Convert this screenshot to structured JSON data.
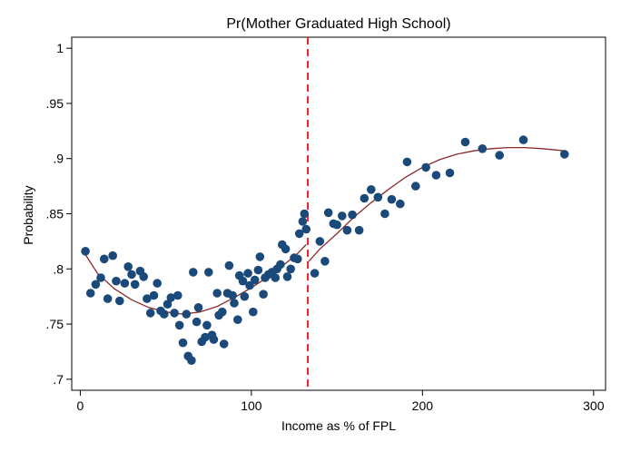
{
  "chart_data": {
    "type": "scatter",
    "title": "Pr(Mother Graduated High School)",
    "xlabel": "Income as % of FPL",
    "ylabel": "Probability",
    "xlim": [
      -5,
      307
    ],
    "ylim": [
      0.69,
      1.01
    ],
    "xticks": [
      0,
      100,
      200,
      300
    ],
    "xtick_labels": [
      "0",
      "100",
      "200",
      "300"
    ],
    "yticks": [
      0.7,
      0.75,
      0.8,
      0.85,
      0.9,
      0.95,
      1.0
    ],
    "ytick_labels": [
      ".7",
      ".75",
      ".8",
      ".85",
      ".9",
      ".95",
      "1"
    ],
    "grid": false,
    "legend": "none",
    "cutoff_x": 133,
    "colors": {
      "points": "#1b4a7a",
      "fit": "#8b2a2a",
      "cutoff": "#e8202a"
    },
    "points": [
      {
        "x": 3,
        "y": 0.816
      },
      {
        "x": 6,
        "y": 0.778
      },
      {
        "x": 9,
        "y": 0.786
      },
      {
        "x": 12,
        "y": 0.792
      },
      {
        "x": 14,
        "y": 0.809
      },
      {
        "x": 16,
        "y": 0.773
      },
      {
        "x": 19,
        "y": 0.812
      },
      {
        "x": 21,
        "y": 0.789
      },
      {
        "x": 23,
        "y": 0.771
      },
      {
        "x": 26,
        "y": 0.787
      },
      {
        "x": 28,
        "y": 0.802
      },
      {
        "x": 30,
        "y": 0.795
      },
      {
        "x": 32,
        "y": 0.786
      },
      {
        "x": 35,
        "y": 0.798
      },
      {
        "x": 37,
        "y": 0.793
      },
      {
        "x": 39,
        "y": 0.773
      },
      {
        "x": 41,
        "y": 0.76
      },
      {
        "x": 43,
        "y": 0.776
      },
      {
        "x": 45,
        "y": 0.787
      },
      {
        "x": 47,
        "y": 0.762
      },
      {
        "x": 49,
        "y": 0.759
      },
      {
        "x": 51,
        "y": 0.768
      },
      {
        "x": 53,
        "y": 0.774
      },
      {
        "x": 55,
        "y": 0.76
      },
      {
        "x": 57,
        "y": 0.776
      },
      {
        "x": 58,
        "y": 0.749
      },
      {
        "x": 60,
        "y": 0.733
      },
      {
        "x": 62,
        "y": 0.759
      },
      {
        "x": 63,
        "y": 0.721
      },
      {
        "x": 65,
        "y": 0.717
      },
      {
        "x": 66,
        "y": 0.797
      },
      {
        "x": 68,
        "y": 0.752
      },
      {
        "x": 69,
        "y": 0.765
      },
      {
        "x": 71,
        "y": 0.734
      },
      {
        "x": 73,
        "y": 0.738
      },
      {
        "x": 74,
        "y": 0.749
      },
      {
        "x": 75,
        "y": 0.797
      },
      {
        "x": 77,
        "y": 0.74
      },
      {
        "x": 78,
        "y": 0.736
      },
      {
        "x": 80,
        "y": 0.778
      },
      {
        "x": 81,
        "y": 0.758
      },
      {
        "x": 83,
        "y": 0.761
      },
      {
        "x": 84,
        "y": 0.732
      },
      {
        "x": 86,
        "y": 0.778
      },
      {
        "x": 87,
        "y": 0.803
      },
      {
        "x": 89,
        "y": 0.776
      },
      {
        "x": 90,
        "y": 0.769
      },
      {
        "x": 92,
        "y": 0.754
      },
      {
        "x": 93,
        "y": 0.794
      },
      {
        "x": 95,
        "y": 0.789
      },
      {
        "x": 96,
        "y": 0.775
      },
      {
        "x": 98,
        "y": 0.796
      },
      {
        "x": 99,
        "y": 0.785
      },
      {
        "x": 101,
        "y": 0.761
      },
      {
        "x": 102,
        "y": 0.79
      },
      {
        "x": 104,
        "y": 0.799
      },
      {
        "x": 105,
        "y": 0.811
      },
      {
        "x": 107,
        "y": 0.777
      },
      {
        "x": 108,
        "y": 0.792
      },
      {
        "x": 110,
        "y": 0.795
      },
      {
        "x": 112,
        "y": 0.797
      },
      {
        "x": 114,
        "y": 0.792
      },
      {
        "x": 115,
        "y": 0.8
      },
      {
        "x": 117,
        "y": 0.804
      },
      {
        "x": 118,
        "y": 0.822
      },
      {
        "x": 120,
        "y": 0.818
      },
      {
        "x": 121,
        "y": 0.793
      },
      {
        "x": 123,
        "y": 0.8
      },
      {
        "x": 125,
        "y": 0.81
      },
      {
        "x": 127,
        "y": 0.809
      },
      {
        "x": 128,
        "y": 0.832
      },
      {
        "x": 130,
        "y": 0.843
      },
      {
        "x": 131,
        "y": 0.85
      },
      {
        "x": 132,
        "y": 0.836
      },
      {
        "x": 137,
        "y": 0.796
      },
      {
        "x": 140,
        "y": 0.825
      },
      {
        "x": 143,
        "y": 0.807
      },
      {
        "x": 145,
        "y": 0.851
      },
      {
        "x": 148,
        "y": 0.841
      },
      {
        "x": 150,
        "y": 0.84
      },
      {
        "x": 153,
        "y": 0.848
      },
      {
        "x": 156,
        "y": 0.835
      },
      {
        "x": 159,
        "y": 0.849
      },
      {
        "x": 163,
        "y": 0.835
      },
      {
        "x": 166,
        "y": 0.864
      },
      {
        "x": 170,
        "y": 0.872
      },
      {
        "x": 174,
        "y": 0.865
      },
      {
        "x": 178,
        "y": 0.85
      },
      {
        "x": 182,
        "y": 0.863
      },
      {
        "x": 187,
        "y": 0.859
      },
      {
        "x": 191,
        "y": 0.897
      },
      {
        "x": 196,
        "y": 0.875
      },
      {
        "x": 202,
        "y": 0.892
      },
      {
        "x": 208,
        "y": 0.885
      },
      {
        "x": 216,
        "y": 0.887
      },
      {
        "x": 225,
        "y": 0.915
      },
      {
        "x": 235,
        "y": 0.909
      },
      {
        "x": 245,
        "y": 0.903
      },
      {
        "x": 259,
        "y": 0.917
      },
      {
        "x": 283,
        "y": 0.904
      }
    ],
    "fit_left": [
      [
        3,
        0.813
      ],
      [
        10,
        0.796
      ],
      [
        20,
        0.782
      ],
      [
        30,
        0.772
      ],
      [
        40,
        0.765
      ],
      [
        50,
        0.761
      ],
      [
        60,
        0.759
      ],
      [
        70,
        0.761
      ],
      [
        80,
        0.766
      ],
      [
        90,
        0.774
      ],
      [
        100,
        0.783
      ],
      [
        110,
        0.793
      ],
      [
        120,
        0.805
      ],
      [
        127,
        0.814
      ],
      [
        132,
        0.822
      ]
    ],
    "fit_right": [
      [
        133,
        0.806
      ],
      [
        140,
        0.818
      ],
      [
        150,
        0.832
      ],
      [
        160,
        0.847
      ],
      [
        170,
        0.86
      ],
      [
        180,
        0.872
      ],
      [
        190,
        0.883
      ],
      [
        200,
        0.892
      ],
      [
        210,
        0.899
      ],
      [
        220,
        0.904
      ],
      [
        230,
        0.907
      ],
      [
        240,
        0.909
      ],
      [
        250,
        0.91
      ],
      [
        260,
        0.91
      ],
      [
        270,
        0.909
      ],
      [
        283,
        0.907
      ]
    ]
  }
}
